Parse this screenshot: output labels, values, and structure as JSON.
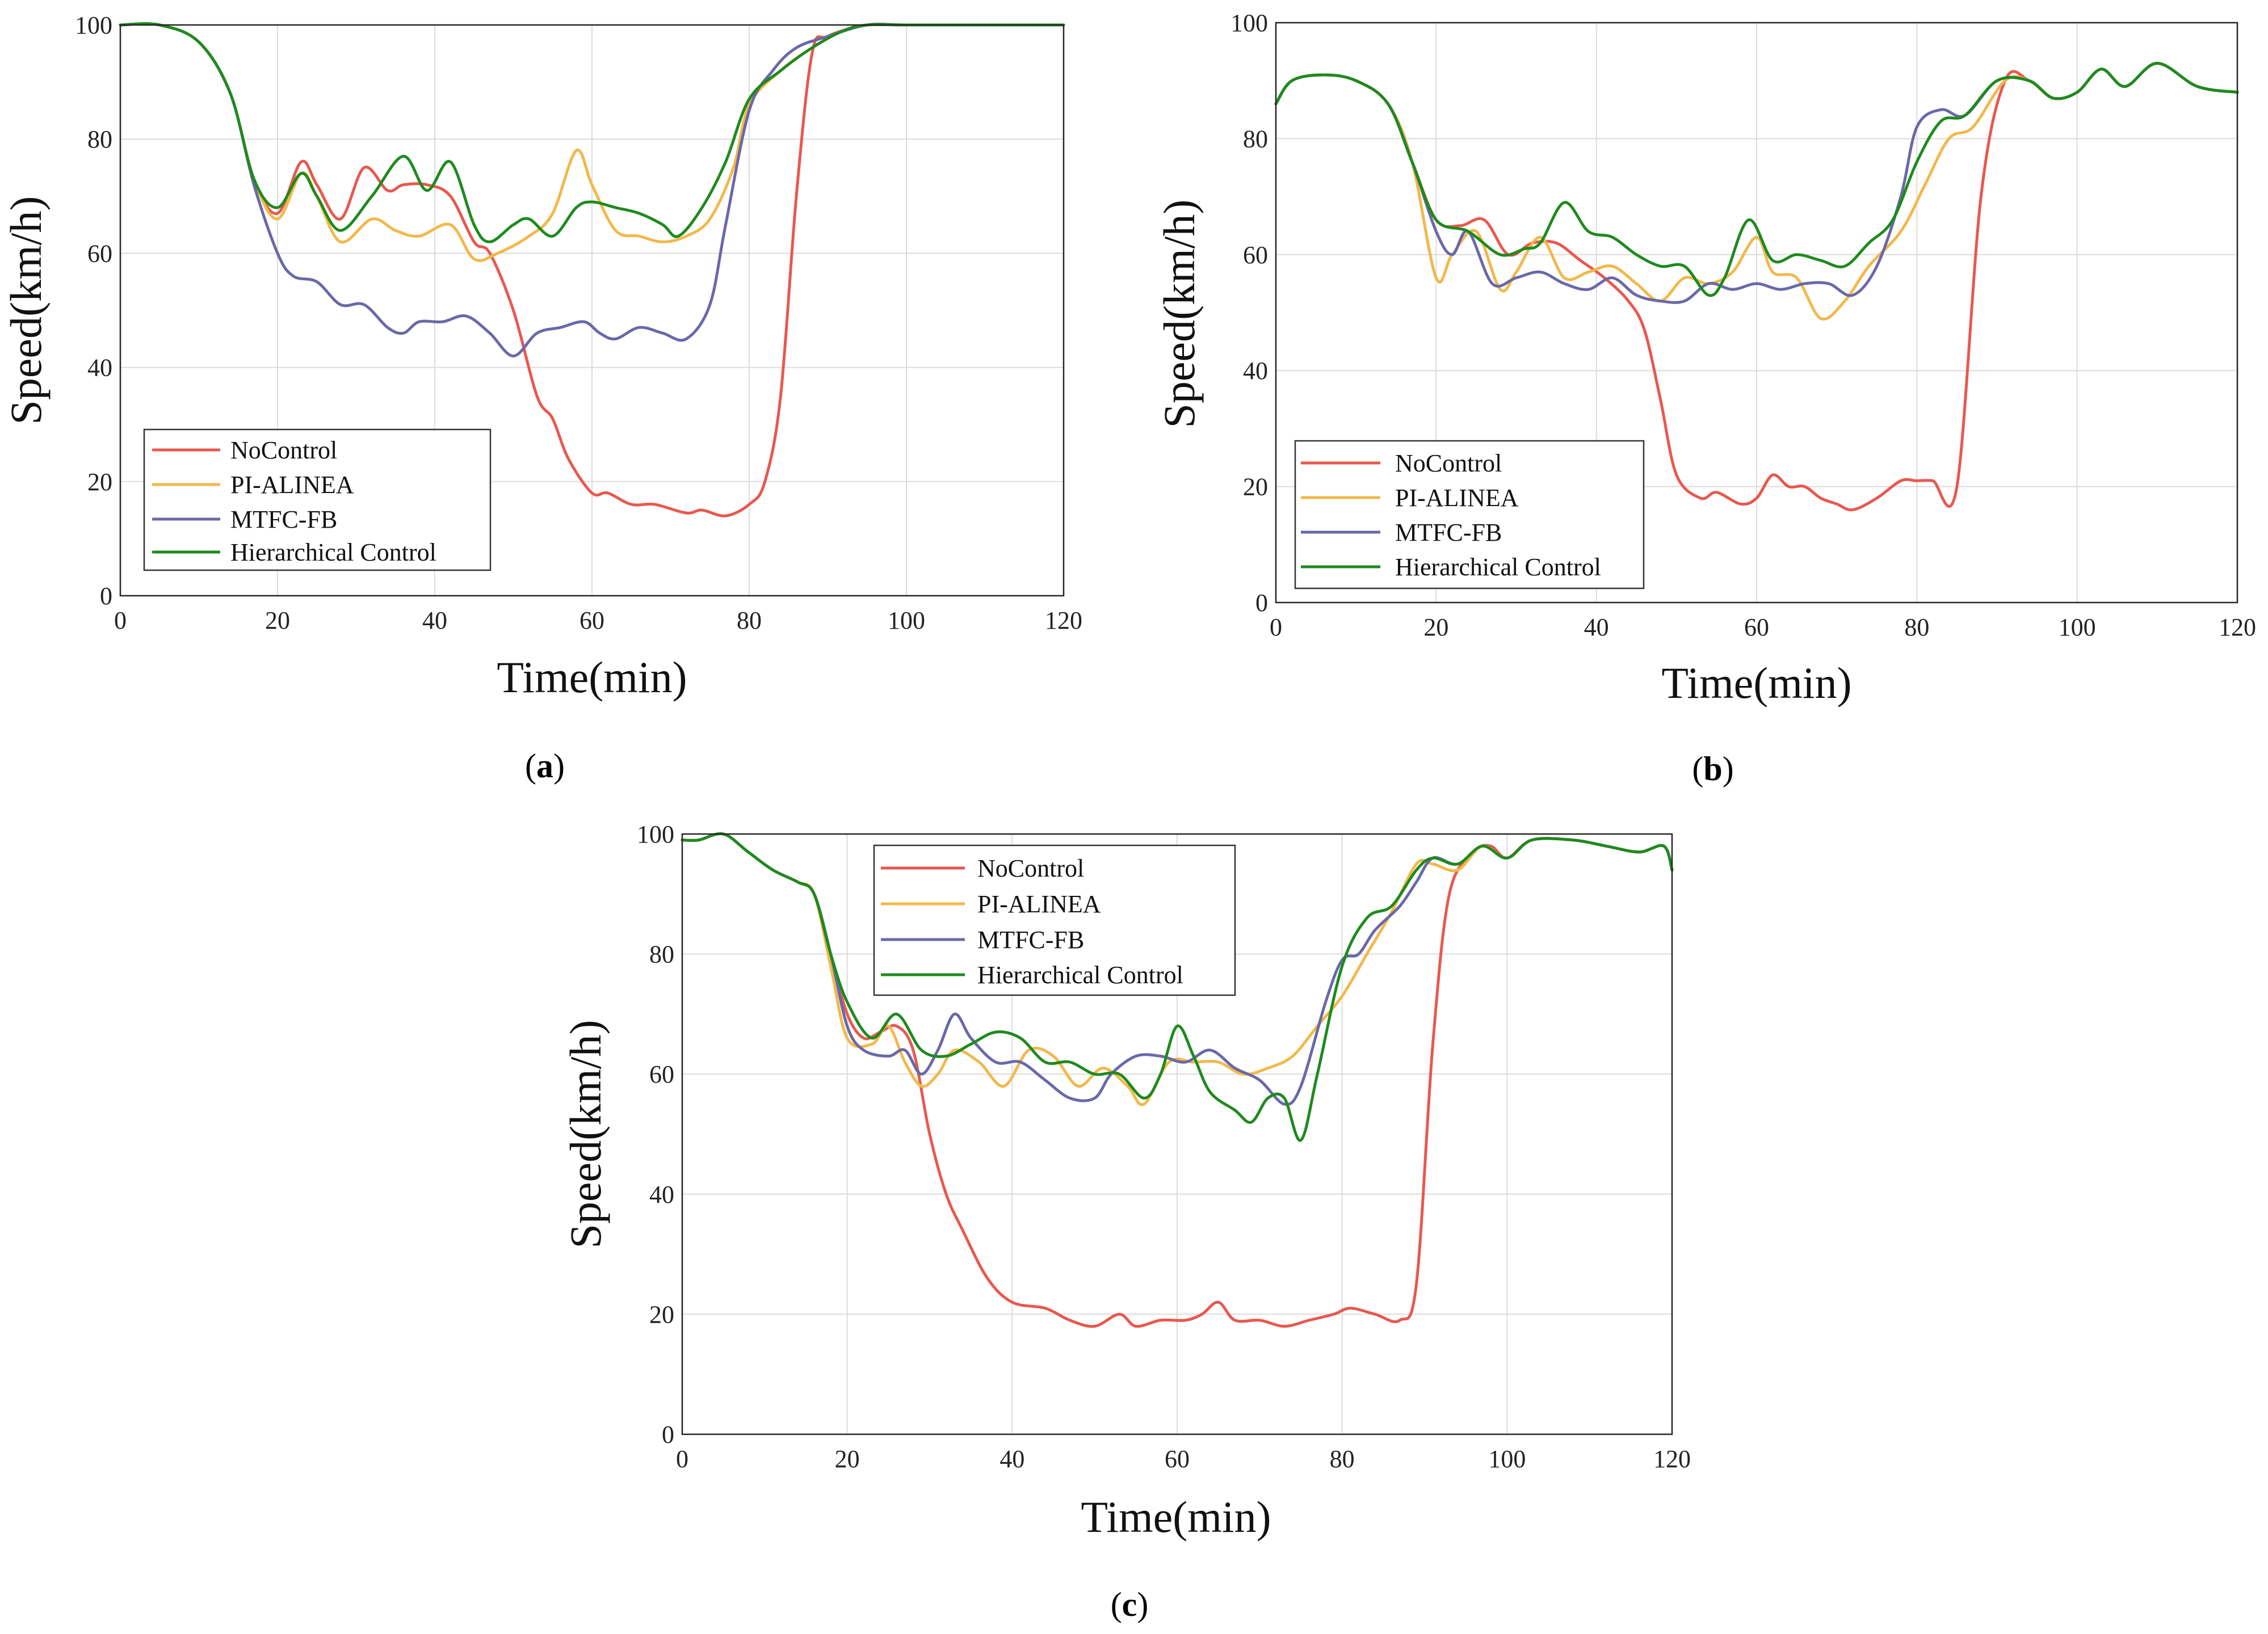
{
  "colors": {
    "NoControl": "#e8584f",
    "PI-ALINEA": "#f2b84b",
    "MTFC-FB": "#6a68a8",
    "Hierarchical Control": "#1e8a1e"
  },
  "chart_data": [
    {
      "id": "a",
      "type": "line",
      "caption_open": "(",
      "caption_letter": "a",
      "caption_close": ")",
      "xlabel": "Time(min)",
      "ylabel": "Speed(km/h)",
      "xlim": [
        0,
        120
      ],
      "ylim": [
        0,
        100
      ],
      "xticks": [
        "0",
        "20",
        "40",
        "60",
        "80",
        "100",
        "120"
      ],
      "yticks": [
        "0",
        "20",
        "40",
        "60",
        "80",
        "100"
      ],
      "grid": true,
      "legend": "lower-left",
      "series": [
        {
          "name": "NoControl",
          "x": [
            0,
            5,
            10,
            14,
            17,
            20,
            23,
            25,
            28,
            31,
            34,
            36,
            39,
            42,
            45,
            47,
            50,
            53,
            55,
            57,
            60,
            62,
            65,
            68,
            72,
            74,
            77,
            80,
            82,
            84,
            86,
            88,
            90,
            95,
            100,
            110,
            120
          ],
          "y": [
            100,
            100,
            97,
            88,
            73,
            67,
            76,
            72,
            66,
            75,
            71,
            72,
            72,
            70,
            62,
            60,
            50,
            35,
            31,
            24,
            18,
            18,
            16,
            16,
            14.5,
            15,
            14,
            16,
            20,
            35,
            70,
            95,
            98,
            100,
            100,
            100,
            100
          ]
        },
        {
          "name": "PI-ALINEA",
          "x": [
            0,
            5,
            10,
            14,
            17,
            20,
            23,
            25,
            28,
            32,
            35,
            38,
            42,
            45,
            48,
            52,
            55,
            58,
            60,
            63,
            66,
            69,
            72,
            75,
            78,
            80,
            84,
            88,
            92,
            95,
            100,
            110,
            120
          ],
          "y": [
            100,
            100,
            97,
            88,
            73,
            66,
            74,
            70,
            62,
            66,
            64,
            63,
            65,
            59,
            60,
            63,
            67,
            78,
            72,
            64,
            63,
            62,
            63,
            66,
            75,
            86,
            92,
            96,
            99,
            100,
            100,
            100,
            100
          ]
        },
        {
          "name": "MTFC-FB",
          "x": [
            0,
            5,
            10,
            14,
            17,
            20,
            22,
            25,
            28,
            31,
            34,
            36,
            38,
            41,
            44,
            47,
            50,
            53,
            56,
            59,
            61,
            63,
            66,
            69,
            72,
            75,
            77,
            80,
            83,
            86,
            90,
            95,
            100,
            110,
            120
          ],
          "y": [
            100,
            100,
            97,
            88,
            72,
            60,
            56,
            55,
            51,
            51,
            47,
            46,
            48,
            48,
            49,
            46,
            42,
            46,
            47,
            48,
            46,
            45,
            47,
            46,
            45,
            51,
            65,
            85,
            92,
            96,
            98,
            100,
            100,
            100,
            100
          ]
        },
        {
          "name": "Hierarchical Control",
          "x": [
            0,
            5,
            10,
            14,
            17,
            20,
            23,
            25,
            28,
            32,
            36,
            39,
            42,
            45,
            47,
            50,
            52,
            55,
            58,
            60,
            63,
            66,
            69,
            71,
            74,
            77,
            80,
            84,
            88,
            92,
            95,
            100,
            110,
            120
          ],
          "y": [
            100,
            100,
            97,
            88,
            73,
            68,
            74,
            70,
            64,
            70,
            77,
            71,
            76,
            65,
            62,
            65,
            66,
            63,
            68,
            69,
            68,
            67,
            65,
            63,
            68,
            76,
            87,
            92,
            96,
            99,
            100,
            100,
            100,
            100
          ]
        }
      ]
    },
    {
      "id": "b",
      "type": "line",
      "caption_open": "(",
      "caption_letter": "b",
      "caption_close": ")",
      "xlabel": "Time(min)",
      "ylabel": "Speed(km/h)",
      "xlim": [
        0,
        120
      ],
      "ylim": [
        0,
        100
      ],
      "xticks": [
        "0",
        "20",
        "40",
        "60",
        "80",
        "100",
        "120"
      ],
      "yticks": [
        "0",
        "20",
        "40",
        "60",
        "80",
        "100"
      ],
      "grid": true,
      "legend": "lower-left",
      "series": [
        {
          "name": "NoControl",
          "x": [
            0,
            2,
            6,
            10,
            14,
            17,
            20,
            23,
            26,
            29,
            32,
            35,
            38,
            41,
            44,
            46,
            48,
            50,
            53,
            55,
            58,
            60,
            62,
            64,
            66,
            68,
            70,
            72,
            75,
            78,
            80,
            82,
            85,
            88,
            91,
            94,
            97,
            100,
            103,
            106,
            110,
            115,
            120
          ],
          "y": [
            86,
            90,
            91,
            90,
            86,
            76,
            66,
            65,
            66,
            60,
            62,
            62,
            59,
            56,
            52,
            47,
            35,
            22,
            18,
            19,
            17,
            18,
            22,
            20,
            20,
            18,
            17,
            16,
            18,
            21,
            21,
            21,
            20,
            70,
            90,
            90,
            87,
            88,
            92,
            89,
            93,
            89,
            88
          ]
        },
        {
          "name": "PI-ALINEA",
          "x": [
            0,
            2,
            6,
            10,
            14,
            17,
            20,
            22,
            25,
            28,
            30,
            33,
            36,
            39,
            42,
            45,
            48,
            51,
            54,
            57,
            60,
            62,
            65,
            68,
            71,
            74,
            78,
            81,
            84,
            87,
            91,
            94,
            97,
            100,
            103,
            106,
            110,
            115,
            120
          ],
          "y": [
            86,
            90,
            91,
            90,
            86,
            76,
            56,
            60,
            64,
            54,
            57,
            63,
            56,
            57,
            58,
            55,
            52,
            56,
            55,
            57,
            63,
            57,
            56,
            49,
            52,
            58,
            64,
            72,
            80,
            82,
            90,
            90,
            87,
            88,
            92,
            89,
            93,
            89,
            88
          ]
        },
        {
          "name": "MTFC-FB",
          "x": [
            0,
            2,
            6,
            10,
            14,
            17,
            20,
            22,
            24,
            27,
            30,
            33,
            36,
            39,
            42,
            45,
            48,
            51,
            54,
            57,
            60,
            63,
            66,
            69,
            72,
            75,
            78,
            80,
            83,
            86,
            90,
            94,
            97,
            100,
            103,
            106,
            110,
            115,
            120
          ],
          "y": [
            86,
            90,
            91,
            90,
            86,
            76,
            64,
            60,
            64,
            55,
            56,
            57,
            55,
            54,
            56,
            53,
            52,
            52,
            55,
            54,
            55,
            54,
            55,
            55,
            53,
            58,
            70,
            82,
            85,
            84,
            90,
            90,
            87,
            88,
            92,
            89,
            93,
            89,
            88
          ]
        },
        {
          "name": "Hierarchical Control",
          "x": [
            0,
            2,
            6,
            10,
            14,
            17,
            20,
            24,
            28,
            31,
            33,
            36,
            39,
            42,
            45,
            48,
            51,
            54,
            56,
            59,
            62,
            65,
            68,
            71,
            74,
            77,
            80,
            83,
            86,
            90,
            94,
            97,
            100,
            103,
            106,
            110,
            115,
            120
          ],
          "y": [
            86,
            90,
            91,
            90,
            86,
            76,
            66,
            64,
            60,
            61,
            62,
            69,
            64,
            63,
            60,
            58,
            58,
            53,
            56,
            66,
            59,
            60,
            59,
            58,
            62,
            66,
            76,
            83,
            84,
            90,
            90,
            87,
            88,
            92,
            89,
            93,
            89,
            88
          ]
        }
      ]
    },
    {
      "id": "c",
      "type": "line",
      "caption_open": "(",
      "caption_letter": "c",
      "caption_close": ")",
      "xlabel": "Time(min)",
      "ylabel": "Speed(km/h)",
      "xlim": [
        0,
        120
      ],
      "ylim": [
        0,
        100
      ],
      "xticks": [
        "0",
        "20",
        "40",
        "60",
        "80",
        "100",
        "120"
      ],
      "yticks": [
        "0",
        "20",
        "40",
        "60",
        "80",
        "100"
      ],
      "grid": true,
      "legend": "top-center",
      "series": [
        {
          "name": "NoControl",
          "x": [
            0,
            2,
            5,
            8,
            11,
            14,
            16,
            18,
            20,
            22,
            24,
            26,
            28,
            30,
            32,
            34,
            37,
            40,
            44,
            47,
            50,
            53,
            55,
            58,
            61,
            63,
            65,
            67,
            70,
            73,
            76,
            79,
            81,
            84,
            87,
            89,
            91,
            93,
            96,
            98,
            100,
            103,
            108,
            112,
            116,
            119,
            120
          ],
          "y": [
            99,
            99,
            100,
            97,
            94,
            92,
            90,
            80,
            70,
            66,
            67,
            68,
            64,
            50,
            40,
            34,
            26,
            22,
            21,
            19,
            18,
            20,
            18,
            19,
            19,
            20,
            22,
            19,
            19,
            18,
            19,
            20,
            21,
            20,
            19,
            25,
            65,
            90,
            97,
            98,
            96,
            99,
            99,
            98,
            97,
            98,
            94
          ]
        },
        {
          "name": "PI-ALINEA",
          "x": [
            0,
            2,
            5,
            8,
            11,
            14,
            16,
            18,
            20,
            23,
            25,
            27,
            29,
            31,
            33,
            36,
            39,
            42,
            45,
            48,
            51,
            54,
            56,
            59,
            62,
            65,
            68,
            71,
            74,
            77,
            80,
            83,
            86,
            89,
            91,
            94,
            97,
            100,
            103,
            108,
            112,
            116,
            119,
            120
          ],
          "y": [
            99,
            99,
            100,
            97,
            94,
            92,
            90,
            78,
            66,
            65,
            68,
            62,
            58,
            60,
            64,
            62,
            58,
            64,
            63,
            58,
            61,
            58,
            55,
            62,
            62,
            62,
            60,
            61,
            63,
            68,
            73,
            80,
            87,
            95,
            95,
            94,
            98,
            96,
            99,
            99,
            98,
            97,
            98,
            94
          ]
        },
        {
          "name": "MTFC-FB",
          "x": [
            0,
            2,
            5,
            8,
            11,
            14,
            16,
            18,
            20,
            22,
            25,
            27,
            29,
            31,
            33,
            35,
            38,
            41,
            44,
            47,
            50,
            52,
            55,
            58,
            61,
            64,
            67,
            70,
            73,
            75,
            78,
            80,
            82,
            84,
            87,
            89,
            91,
            94,
            97,
            100,
            103,
            108,
            112,
            116,
            119,
            120
          ],
          "y": [
            99,
            99,
            100,
            97,
            94,
            92,
            90,
            80,
            68,
            64,
            63,
            64,
            60,
            64,
            70,
            66,
            62,
            62,
            59,
            56,
            56,
            60,
            63,
            63,
            62,
            64,
            61,
            59,
            55,
            58,
            72,
            79,
            80,
            84,
            88,
            92,
            96,
            95,
            98,
            96,
            99,
            99,
            98,
            97,
            98,
            94
          ]
        },
        {
          "name": "Hierarchical Control",
          "x": [
            0,
            2,
            5,
            8,
            11,
            14,
            16,
            18,
            20,
            23,
            26,
            29,
            32,
            35,
            38,
            41,
            44,
            47,
            50,
            53,
            56,
            58,
            60,
            62,
            64,
            67,
            69,
            71,
            73,
            75,
            77,
            80,
            83,
            86,
            89,
            91,
            94,
            97,
            100,
            103,
            108,
            112,
            116,
            119,
            120
          ],
          "y": [
            99,
            99,
            100,
            97,
            94,
            92,
            90,
            80,
            72,
            66,
            70,
            64,
            63,
            65,
            67,
            66,
            62,
            62,
            60,
            60,
            56,
            60,
            68,
            63,
            57,
            54,
            52,
            56,
            56,
            49,
            60,
            78,
            86,
            88,
            94,
            96,
            95,
            98,
            96,
            99,
            99,
            98,
            97,
            98,
            94
          ]
        }
      ]
    }
  ]
}
